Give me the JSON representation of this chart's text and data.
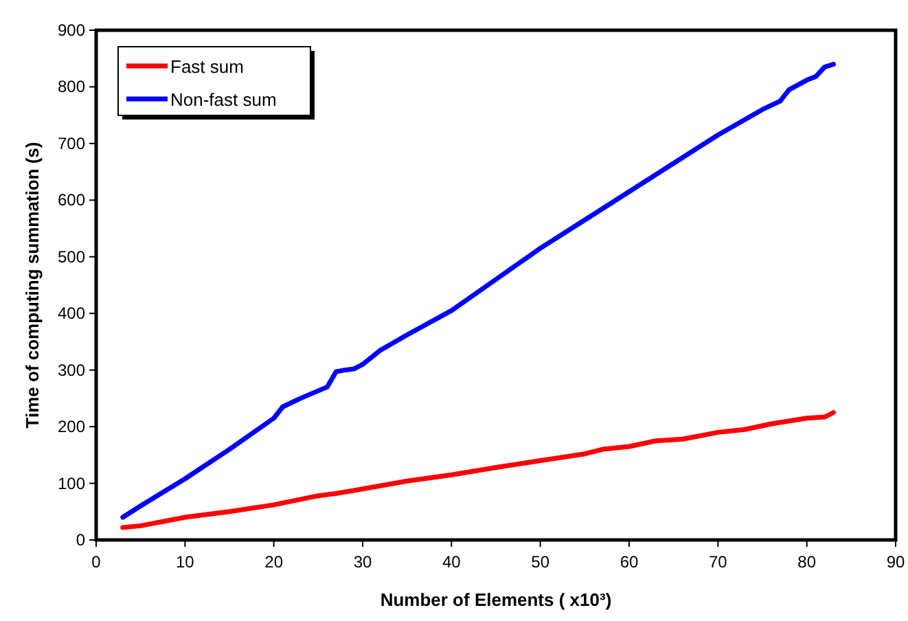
{
  "chart_data": {
    "type": "line",
    "xlabel": "Number of Elements ( x10³)",
    "ylabel": "Time of computing summation (s)",
    "xlim": [
      0,
      90
    ],
    "xticks": [
      0,
      10,
      20,
      30,
      40,
      50,
      60,
      70,
      80,
      90
    ],
    "ylim": [
      0,
      900
    ],
    "yticks": [
      0,
      100,
      200,
      300,
      400,
      500,
      600,
      700,
      800,
      900
    ],
    "legend": "top left",
    "grid": false,
    "series": [
      {
        "name": "Fast sum",
        "color": "#ff0000",
        "x": [
          3,
          5,
          10,
          15,
          20,
          25,
          27,
          30,
          35,
          40,
          45,
          50,
          55,
          57,
          60,
          63,
          66,
          70,
          73,
          76,
          80,
          82,
          83
        ],
        "values": [
          22,
          25,
          40,
          50,
          62,
          78,
          82,
          90,
          104,
          115,
          128,
          140,
          152,
          160,
          165,
          175,
          178,
          190,
          195,
          205,
          215,
          217,
          225
        ]
      },
      {
        "name": "Non-fast sum",
        "color": "#0000ff",
        "x": [
          3,
          5,
          10,
          15,
          20,
          21,
          23,
          26,
          27,
          28,
          29,
          30,
          32,
          35,
          40,
          45,
          50,
          55,
          56,
          60,
          65,
          70,
          75,
          77,
          78,
          80,
          81,
          82,
          83
        ],
        "values": [
          40,
          60,
          108,
          160,
          215,
          235,
          250,
          270,
          297,
          300,
          302,
          310,
          335,
          362,
          405,
          460,
          515,
          565,
          575,
          615,
          665,
          715,
          760,
          775,
          795,
          812,
          818,
          835,
          840
        ]
      }
    ]
  }
}
